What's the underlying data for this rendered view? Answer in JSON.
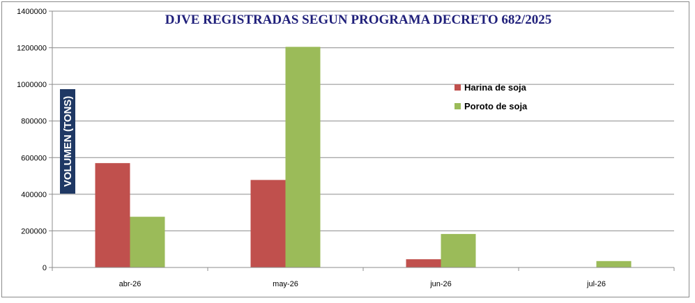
{
  "chart_data": {
    "type": "bar",
    "title": "DJVE REGISTRADAS SEGUN PROGRAMA DECRETO 682/2025",
    "ylabel": "VOLUMEN (TONS)",
    "xlabel": "",
    "categories": [
      "abr-26",
      "may-26",
      "jun-26",
      "jul-26"
    ],
    "series": [
      {
        "name": "Harina de soja",
        "color": "#c0504d",
        "values": [
          570000,
          478000,
          45000,
          0
        ]
      },
      {
        "name": "Poroto de soja",
        "color": "#9bbb59",
        "values": [
          277000,
          1205000,
          183000,
          35000
        ]
      }
    ],
    "ylim": [
      0,
      1400000
    ],
    "yticks": [
      "0",
      "200000",
      "400000",
      "600000",
      "800000",
      "1000000",
      "1200000",
      "1400000"
    ],
    "grid": true,
    "legend_position": "right"
  }
}
